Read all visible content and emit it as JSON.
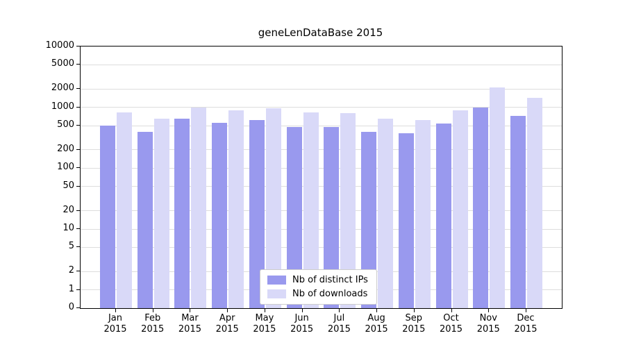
{
  "chart_data": {
    "type": "bar",
    "title": "geneLenDataBase 2015",
    "yscale": "symlog",
    "ylim": [
      0,
      10000
    ],
    "grid": true,
    "legend_position": "bottom-center",
    "categories": [
      "Jan 2015",
      "Feb 2015",
      "Mar 2015",
      "Apr 2015",
      "May 2015",
      "Jun 2015",
      "Jul 2015",
      "Aug 2015",
      "Sep 2015",
      "Oct 2015",
      "Nov 2015",
      "Dec 2015"
    ],
    "yticks": [
      0,
      1,
      2,
      5,
      10,
      20,
      50,
      100,
      200,
      500,
      1000,
      2000,
      5000,
      10000
    ],
    "series": [
      {
        "name": "Nb of distinct IPs",
        "color": "#9999ee",
        "values": [
          500,
          400,
          650,
          550,
          620,
          480,
          470,
          400,
          380,
          540,
          980,
          720
        ]
      },
      {
        "name": "Nb of downloads",
        "color": "#d9d9f8",
        "values": [
          820,
          650,
          1000,
          890,
          960,
          830,
          800,
          650,
          620,
          900,
          2150,
          1450
        ]
      }
    ]
  }
}
